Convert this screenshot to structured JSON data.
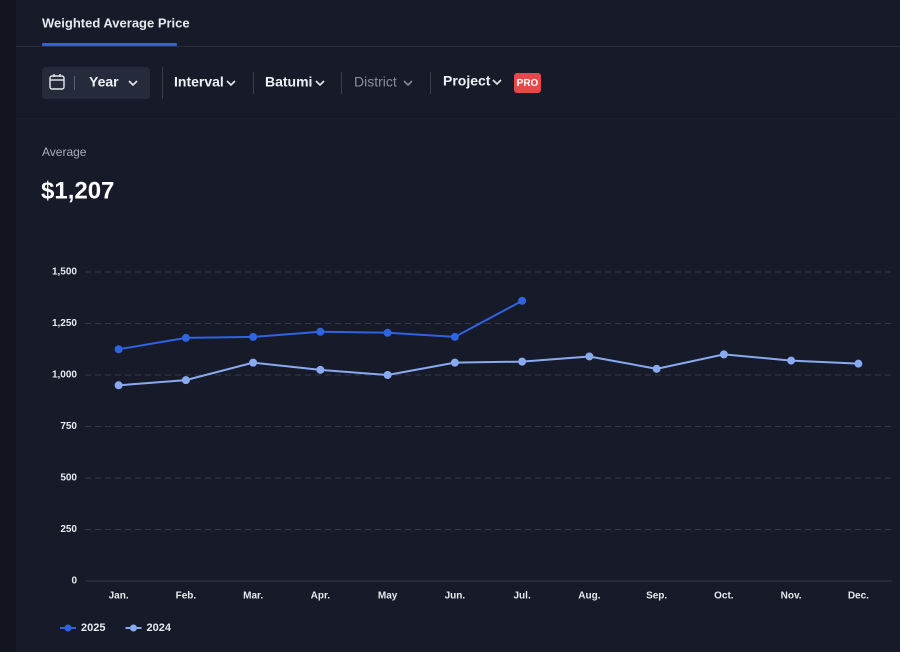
{
  "tabs": {
    "active": "Weighted Average Price"
  },
  "filters": {
    "date": "Year",
    "interval": "Interval",
    "city": "Batumi",
    "district": "District",
    "project": "Project",
    "badge": "PRO"
  },
  "summary": {
    "label": "Average",
    "value": "$1,207"
  },
  "chart_data": {
    "type": "line",
    "categories": [
      "Jan.",
      "Feb.",
      "Mar.",
      "Apr.",
      "May",
      "Jun.",
      "Jul.",
      "Aug.",
      "Sep.",
      "Oct.",
      "Nov.",
      "Dec."
    ],
    "series": [
      {
        "name": "2025",
        "color": "#2f63e0",
        "values": [
          1125,
          1180,
          1185,
          1210,
          1205,
          1185,
          1360,
          null,
          null,
          null,
          null,
          null
        ]
      },
      {
        "name": "2024",
        "color": "#8aaaf0",
        "values": [
          950,
          975,
          1060,
          1025,
          1000,
          1060,
          1065,
          1090,
          1030,
          1100,
          1070,
          1055
        ]
      }
    ],
    "ylim": [
      0,
      1500
    ],
    "yticks": [
      0,
      250,
      500,
      750,
      {
        "value": 1000,
        "label": "1,000"
      },
      {
        "value": 1250,
        "label": "1,250"
      },
      {
        "value": 1500,
        "label": "1,500"
      }
    ],
    "grid": true,
    "legend": "bottom-left"
  }
}
